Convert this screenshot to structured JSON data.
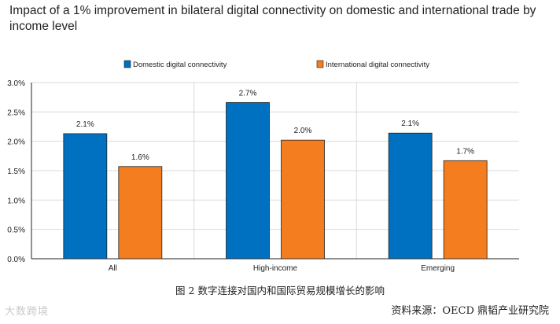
{
  "chart_data": {
    "type": "bar",
    "title": "Impact of a 1% improvement in bilateral digital connectivity on domestic and international trade by income level",
    "categories": [
      "All",
      "High-income",
      "Emerging"
    ],
    "series": [
      {
        "name": "Domestic digital connectivity",
        "color": "#0070C0",
        "values": [
          2.1,
          2.7,
          2.1
        ],
        "labels": [
          "2.1%",
          "2.7%",
          "2.1%"
        ]
      },
      {
        "name": "International digital connectivity",
        "color": "#F47D20",
        "values": [
          1.6,
          2.0,
          1.7
        ],
        "labels": [
          "1.6%",
          "2.0%",
          "1.7%"
        ]
      }
    ],
    "bar_values": [
      [
        2.13,
        2.66,
        2.14
      ],
      [
        1.57,
        2.02,
        1.67
      ]
    ],
    "ylim": [
      0,
      3.0
    ],
    "yticks": [
      0,
      0.5,
      1.0,
      1.5,
      2.0,
      2.5,
      3.0
    ],
    "ytick_labels": [
      "0.0%",
      "0.5%",
      "1.0%",
      "1.5%",
      "2.0%",
      "2.5%",
      "3.0%"
    ],
    "grid": true,
    "legend_position": "top"
  },
  "caption": "图 2  数字连接对国内和国际贸易规模增长的影响",
  "source": "资料来源：OECD  鼎韬产业研究院",
  "watermark": "大数跨境"
}
